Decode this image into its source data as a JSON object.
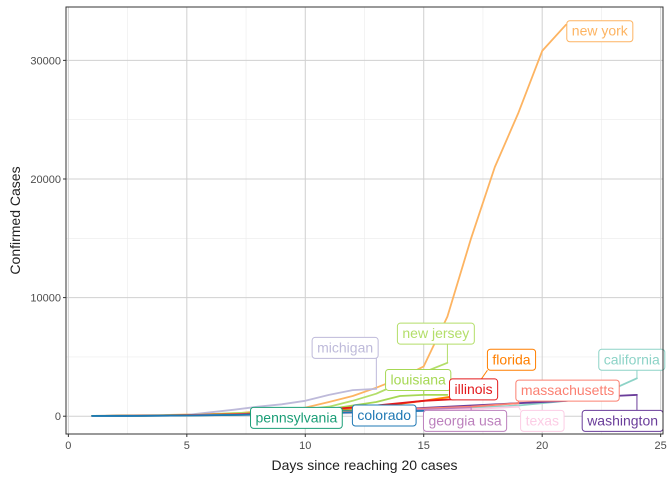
{
  "chart_data": {
    "type": "line",
    "title": "",
    "xlabel": "Days since reaching 20 cases",
    "ylabel": "Confirmed Cases",
    "xlim": [
      -0.1,
      25.1
    ],
    "ylim": [
      -1500,
      34500
    ],
    "x_ticks": [
      0,
      5,
      10,
      15,
      20,
      25
    ],
    "x_tick_labels": [
      "0",
      "5",
      "10",
      "15",
      "20",
      "25"
    ],
    "y_ticks": [
      0,
      10000,
      20000,
      30000
    ],
    "y_tick_labels": [
      "0",
      "10000",
      "20000",
      "30000"
    ],
    "grid": true,
    "legend": "none",
    "series": [
      {
        "name": "new york",
        "color": "#fdb462",
        "x": [
          1,
          2,
          3,
          4,
          5,
          6,
          7,
          8,
          9,
          10,
          11,
          12,
          13,
          14,
          15,
          16,
          17,
          18,
          19,
          20,
          21
        ],
        "y": [
          22,
          33,
          76,
          105,
          142,
          173,
          216,
          421,
          524,
          729,
          1200,
          1700,
          2400,
          3200,
          4200,
          8400,
          15000,
          21000,
          25600,
          30800,
          33000
        ]
      },
      {
        "name": "new jersey",
        "color": "#b3de69",
        "x": [
          1,
          2,
          3,
          4,
          5,
          6,
          7,
          8,
          9,
          10,
          11,
          12,
          13,
          14,
          15,
          16
        ],
        "y": [
          23,
          29,
          37,
          69,
          98,
          178,
          267,
          300,
          400,
          600,
          800,
          1300,
          1900,
          2800,
          3700,
          4500
        ]
      },
      {
        "name": "california",
        "color": "#8dd3c7",
        "x": [
          1,
          3,
          5,
          7,
          9,
          11,
          13,
          15,
          17,
          19,
          21,
          22,
          23,
          24
        ],
        "y": [
          20,
          40,
          70,
          110,
          170,
          250,
          350,
          500,
          700,
          900,
          1300,
          1700,
          2300,
          3200
        ]
      },
      {
        "name": "washington",
        "color": "#6a3d9a",
        "x": [
          1,
          3,
          5,
          7,
          9,
          11,
          13,
          15,
          17,
          19,
          21,
          22,
          23,
          24
        ],
        "y": [
          20,
          50,
          90,
          150,
          250,
          350,
          500,
          700,
          900,
          1100,
          1300,
          1500,
          1700,
          1800
        ]
      },
      {
        "name": "michigan",
        "color": "#bebada",
        "x": [
          1,
          2,
          3,
          4,
          5,
          6,
          7,
          8,
          9,
          10,
          11,
          12,
          13
        ],
        "y": [
          25,
          30,
          65,
          80,
          110,
          330,
          550,
          800,
          1000,
          1300,
          1800,
          2200,
          2300
        ]
      },
      {
        "name": "louisiana",
        "color": "#a6d854",
        "x": [
          1,
          3,
          5,
          7,
          9,
          11,
          12,
          13,
          14,
          15,
          16
        ],
        "y": [
          20,
          50,
          100,
          190,
          370,
          600,
          900,
          1200,
          1700,
          1800,
          1800
        ]
      },
      {
        "name": "florida",
        "color": "#ff7f00",
        "x": [
          1,
          3,
          5,
          7,
          9,
          11,
          13,
          15,
          17
        ],
        "y": [
          20,
          50,
          100,
          180,
          300,
          500,
          800,
          1300,
          1900
        ]
      },
      {
        "name": "illinois",
        "color": "#e31a1c",
        "x": [
          1,
          3,
          5,
          7,
          9,
          11,
          13,
          15,
          17,
          18
        ],
        "y": [
          25,
          46,
          93,
          160,
          300,
          580,
          900,
          1300,
          1500,
          1550
        ]
      },
      {
        "name": "massachusetts",
        "color": "#fb8072",
        "x": [
          1,
          3,
          5,
          7,
          9,
          11,
          13,
          15,
          17,
          19
        ],
        "y": [
          20,
          40,
          80,
          120,
          200,
          320,
          500,
          650,
          800,
          1100
        ]
      },
      {
        "name": "georgia usa",
        "color": "#bc80bd",
        "x": [
          1,
          3,
          5,
          7,
          9,
          11,
          13,
          15,
          17
        ],
        "y": [
          20,
          35,
          70,
          120,
          200,
          280,
          400,
          550,
          700
        ]
      },
      {
        "name": "texas",
        "color": "#fccde5",
        "x": [
          1,
          3,
          5,
          7,
          9,
          11,
          13,
          15,
          17,
          19
        ],
        "y": [
          20,
          30,
          60,
          90,
          140,
          200,
          300,
          450,
          600,
          800
        ]
      },
      {
        "name": "pennsylvania",
        "color": "#1b9e77",
        "x": [
          1,
          3,
          5,
          7,
          9,
          11,
          13,
          14
        ],
        "y": [
          22,
          35,
          60,
          100,
          180,
          270,
          400,
          500
        ]
      },
      {
        "name": "colorado",
        "color": "#1f78b4",
        "x": [
          1,
          3,
          5,
          7,
          9,
          11,
          13,
          15
        ],
        "y": [
          20,
          30,
          60,
          110,
          180,
          260,
          380,
          450
        ]
      }
    ],
    "annotations": [
      {
        "text": "new york",
        "color": "#fdb462",
        "series": "new york",
        "x": 21,
        "y": 33000,
        "tx": 21.25,
        "ty": 32500
      },
      {
        "text": "new jersey",
        "color": "#b3de69",
        "series": "new jersey",
        "x": 16,
        "y": 4500,
        "tx": 14.1,
        "ty": 7000
      },
      {
        "text": "michigan",
        "color": "#bebada",
        "series": "michigan",
        "x": 13,
        "y": 2300,
        "tx": 10.5,
        "ty": 5800
      },
      {
        "text": "florida",
        "color": "#ff7f00",
        "series": "florida",
        "x": 17,
        "y": 1900,
        "tx": 17.9,
        "ty": 4800
      },
      {
        "text": "california",
        "color": "#8dd3c7",
        "series": "california",
        "x": 24,
        "y": 3200,
        "tx": 22.6,
        "ty": 4800
      },
      {
        "text": "louisiana",
        "color": "#a6d854",
        "series": "louisiana",
        "x": 15,
        "y": 1800,
        "tx": 13.6,
        "ty": 3100
      },
      {
        "text": "illinois",
        "color": "#e31a1c",
        "series": "illinois",
        "x": 18,
        "y": 1550,
        "tx": 16.3,
        "ty": 2300
      },
      {
        "text": "massachusetts",
        "color": "#fb8072",
        "series": "massachusetts",
        "x": 19,
        "y": 1100,
        "tx": 19.1,
        "ty": 2200
      },
      {
        "text": "georgia usa",
        "color": "#bc80bd",
        "series": "georgia usa",
        "x": 17,
        "y": 700,
        "tx": 15.2,
        "ty": -350
      },
      {
        "text": "texas",
        "color": "#fccde5",
        "series": "texas",
        "x": 19,
        "y": 800,
        "tx": 19.3,
        "ty": -350
      },
      {
        "text": "washington",
        "color": "#6a3d9a",
        "series": "washington",
        "x": 24,
        "y": 1800,
        "tx": 21.9,
        "ty": -350
      },
      {
        "text": "pennsylvania",
        "color": "#1b9e77",
        "series": "pennsylvania",
        "x": 14,
        "y": 500,
        "tx": 7.9,
        "ty": -100
      },
      {
        "text": "colorado",
        "color": "#1f78b4",
        "series": "colorado",
        "x": 15,
        "y": 450,
        "tx": 12.2,
        "ty": 100
      }
    ]
  }
}
